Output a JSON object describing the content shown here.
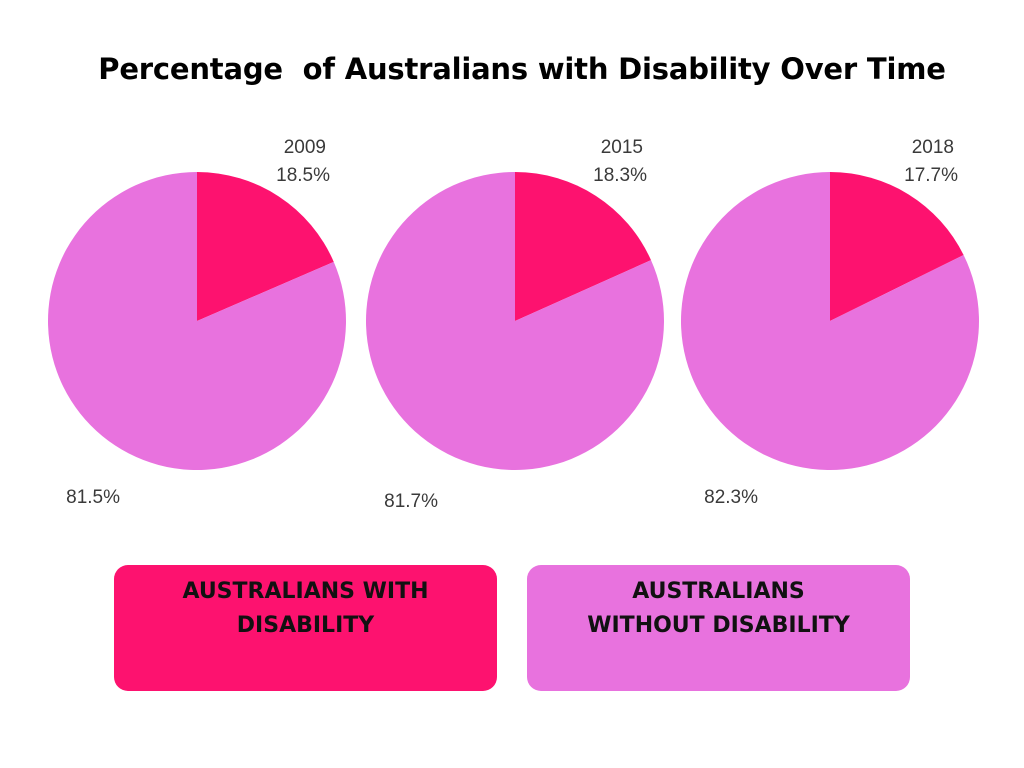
{
  "chart_data": {
    "type": "pie",
    "title": "Percentage  of Australians with Disability Over Time",
    "colors": {
      "with_disability": "#fd126f",
      "without_disability": "#e872de"
    },
    "pies": [
      {
        "year": "2009",
        "slices": [
          {
            "name": "AUSTRALIANS WITH DISABILITY",
            "value": 18.5,
            "label": "18.5%"
          },
          {
            "name": "AUSTRALIANS WITHOUT DISABILITY",
            "value": 81.5,
            "label": "81.5%"
          }
        ]
      },
      {
        "year": "2015",
        "slices": [
          {
            "name": "AUSTRALIANS WITH DISABILITY",
            "value": 18.3,
            "label": "18.3%"
          },
          {
            "name": "AUSTRALIANS WITHOUT DISABILITY",
            "value": 81.7,
            "label": "81.7%"
          }
        ]
      },
      {
        "year": "2018",
        "slices": [
          {
            "name": "AUSTRALIANS WITH DISABILITY",
            "value": 17.7,
            "label": "17.7%"
          },
          {
            "name": "AUSTRALIANS WITHOUT DISABILITY",
            "value": 82.3,
            "label": "82.3%"
          }
        ]
      }
    ],
    "legend": [
      {
        "label": "AUSTRALIANS WITH DISABILITY",
        "color": "#fd126f"
      },
      {
        "label": "AUSTRALIANS WITHOUT DISABILITY",
        "color": "#e872de"
      }
    ]
  }
}
